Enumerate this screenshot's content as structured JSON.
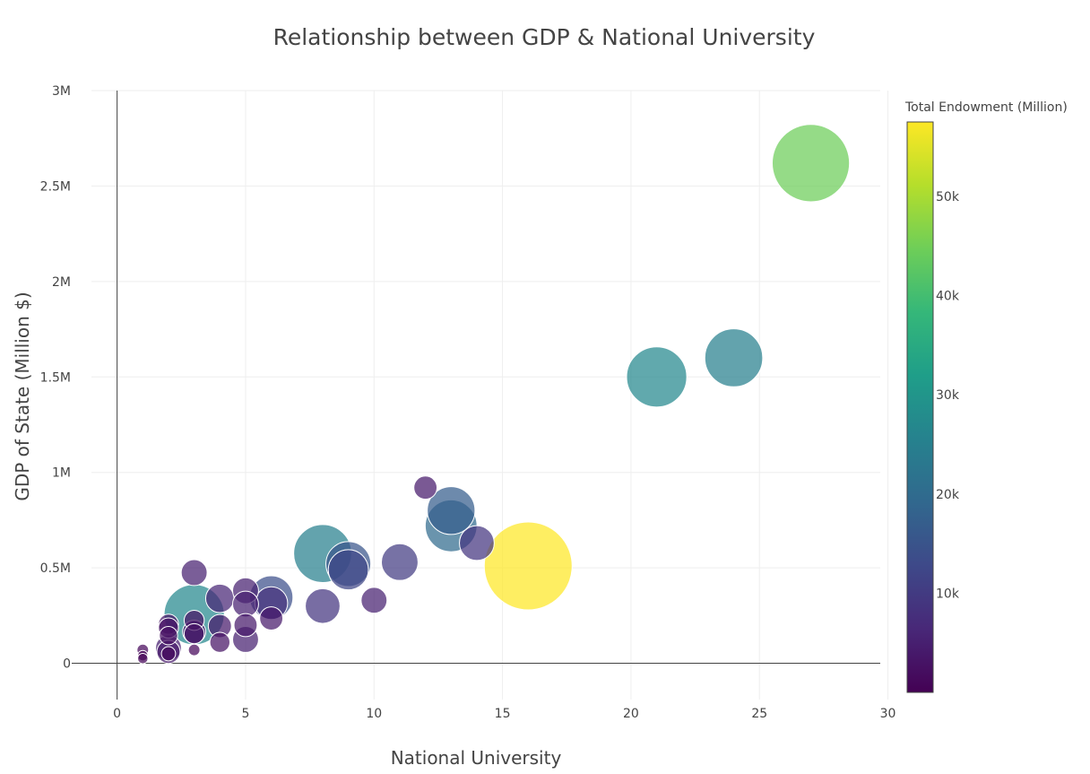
{
  "chart_data": {
    "type": "scatter",
    "title": "Relationship between GDP & National University",
    "xlabel": "National University",
    "ylabel": "GDP of State (Million $)",
    "xlim": [
      -0.5,
      30.2
    ],
    "ylim": [
      -190000,
      3000000
    ],
    "x_ticks": [
      {
        "value": 0,
        "label": "0"
      },
      {
        "value": 5,
        "label": "5"
      },
      {
        "value": 10,
        "label": "10"
      },
      {
        "value": 15,
        "label": "15"
      },
      {
        "value": 20,
        "label": "20"
      },
      {
        "value": 25,
        "label": "25"
      },
      {
        "value": 30,
        "label": "30"
      }
    ],
    "y_ticks": [
      {
        "value": 0,
        "label": "0"
      },
      {
        "value": 500000,
        "label": "0.5M"
      },
      {
        "value": 1000000,
        "label": "1M"
      },
      {
        "value": 1500000,
        "label": "1.5M"
      },
      {
        "value": 2000000,
        "label": "2M"
      },
      {
        "value": 2500000,
        "label": "2.5M"
      },
      {
        "value": 3000000,
        "label": "3M"
      }
    ],
    "grid": true,
    "colorbar": {
      "title": "Total Endowment (Million)",
      "range": [
        0,
        57500
      ],
      "ticks": [
        {
          "value": 10000,
          "label": "10k"
        },
        {
          "value": 20000,
          "label": "20k"
        },
        {
          "value": 30000,
          "label": "30k"
        },
        {
          "value": 40000,
          "label": "40k"
        },
        {
          "value": 50000,
          "label": "50k"
        }
      ],
      "colorscale": [
        "#440154",
        "#482878",
        "#3e4989",
        "#31688e",
        "#26828e",
        "#1f9e89",
        "#35b779",
        "#6ece58",
        "#b5de2b",
        "#fde725"
      ]
    },
    "points": [
      {
        "x": 27,
        "y": 2620000,
        "endowment": 44500
      },
      {
        "x": 24,
        "y": 1600000,
        "endowment": 25000
      },
      {
        "x": 21,
        "y": 1500000,
        "endowment": 27000
      },
      {
        "x": 16,
        "y": 510000,
        "endowment": 57500
      },
      {
        "x": 14,
        "y": 630000,
        "endowment": 9000
      },
      {
        "x": 13,
        "y": 800000,
        "endowment": 17000
      },
      {
        "x": 13,
        "y": 720000,
        "endowment": 20000
      },
      {
        "x": 12,
        "y": 920000,
        "endowment": 4000
      },
      {
        "x": 11,
        "y": 530000,
        "endowment": 10000
      },
      {
        "x": 10,
        "y": 330000,
        "endowment": 5000
      },
      {
        "x": 9,
        "y": 520000,
        "endowment": 15000
      },
      {
        "x": 9,
        "y": 490000,
        "endowment": 12000
      },
      {
        "x": 8,
        "y": 575000,
        "endowment": 25000
      },
      {
        "x": 8,
        "y": 300000,
        "endowment": 9000
      },
      {
        "x": 6,
        "y": 345000,
        "endowment": 14000
      },
      {
        "x": 6,
        "y": 315000,
        "endowment": 8000
      },
      {
        "x": 6,
        "y": 235000,
        "endowment": 4000
      },
      {
        "x": 5,
        "y": 380000,
        "endowment": 5000
      },
      {
        "x": 5,
        "y": 310000,
        "endowment": 5000
      },
      {
        "x": 5,
        "y": 200000,
        "endowment": 4000
      },
      {
        "x": 5,
        "y": 125000,
        "endowment": 5000
      },
      {
        "x": 4,
        "y": 340000,
        "endowment": 6000
      },
      {
        "x": 4,
        "y": 195000,
        "endowment": 4000
      },
      {
        "x": 4,
        "y": 110000,
        "endowment": 3000
      },
      {
        "x": 3,
        "y": 475000,
        "endowment": 5000
      },
      {
        "x": 3,
        "y": 255000,
        "endowment": 27000
      },
      {
        "x": 3,
        "y": 225000,
        "endowment": 3000
      },
      {
        "x": 3,
        "y": 165000,
        "endowment": 4000
      },
      {
        "x": 3,
        "y": 155000,
        "endowment": 3000
      },
      {
        "x": 3,
        "y": 70000,
        "endowment": 1000
      },
      {
        "x": 2,
        "y": 205000,
        "endowment": 3000
      },
      {
        "x": 2,
        "y": 185000,
        "endowment": 3000
      },
      {
        "x": 2,
        "y": 145000,
        "endowment": 2500
      },
      {
        "x": 2,
        "y": 80000,
        "endowment": 5000
      },
      {
        "x": 2,
        "y": 60000,
        "endowment": 4000
      },
      {
        "x": 2,
        "y": 50000,
        "endowment": 1500
      },
      {
        "x": 1,
        "y": 70000,
        "endowment": 1000
      },
      {
        "x": 1,
        "y": 40000,
        "endowment": 800
      },
      {
        "x": 1,
        "y": 25000,
        "endowment": 800
      }
    ]
  }
}
